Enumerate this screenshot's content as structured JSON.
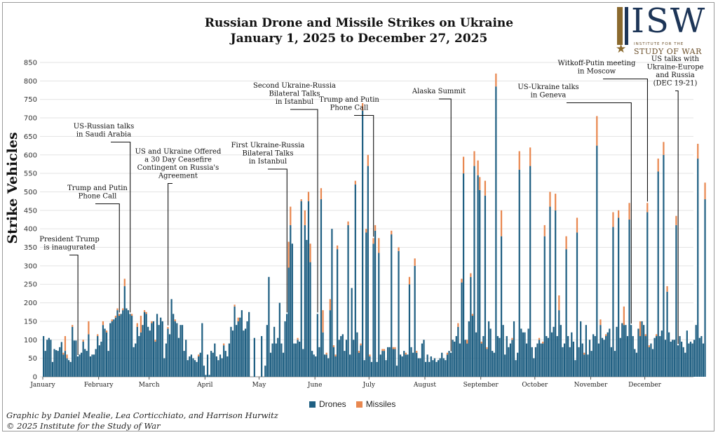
{
  "header": {
    "title_line1": "Russian Drone and Missile Strikes on Ukraine",
    "title_line2": "January 1, 2025 to December 27, 2025"
  },
  "logo": {
    "letters": "ISW",
    "institute_line": "INSTITUTE FOR THE",
    "study_line": "STUDY OF WAR",
    "colors": {
      "navy": "#1d3557",
      "gold": "#8b6a2e"
    }
  },
  "legend": {
    "drones_label": "Drones",
    "missiles_label": "Missiles"
  },
  "credit": {
    "line1": "Graphic by Daniel Mealie, Lea Corticchiato, and Harrison Hurwitz",
    "line2": "© 2025 Institute for the Study of War"
  },
  "chart_data": {
    "type": "bar",
    "stacked": true,
    "ylabel": "Strike Vehicles",
    "xlabel": "",
    "ylim": [
      0,
      850
    ],
    "yticks": [
      0,
      50,
      100,
      150,
      200,
      250,
      300,
      350,
      400,
      450,
      500,
      550,
      600,
      650,
      700,
      750,
      800,
      850
    ],
    "grid": true,
    "legend_position": "bottom-center",
    "x_start": "2025-01-01",
    "x_end": "2025-12-27",
    "month_ticks": [
      {
        "label": "January",
        "date": "2025-01-01"
      },
      {
        "label": "February",
        "date": "2025-02-01"
      },
      {
        "label": "March",
        "date": "2025-03-01"
      },
      {
        "label": "April",
        "date": "2025-04-01"
      },
      {
        "label": "May",
        "date": "2025-05-01"
      },
      {
        "label": "June",
        "date": "2025-06-01"
      },
      {
        "label": "July",
        "date": "2025-07-01"
      },
      {
        "label": "August",
        "date": "2025-08-01"
      },
      {
        "label": "September",
        "date": "2025-09-01"
      },
      {
        "label": "October",
        "date": "2025-10-01"
      },
      {
        "label": "November",
        "date": "2025-11-01"
      },
      {
        "label": "December",
        "date": "2025-12-01"
      }
    ],
    "colors": {
      "Drones": "#1f5f82",
      "Missiles": "#e8874f"
    },
    "series": [
      {
        "name": "Drones",
        "values": [
          110,
          70,
          100,
          105,
          100,
          40,
          75,
          72,
          70,
          80,
          94,
          60,
          70,
          50,
          45,
          40,
          135,
          98,
          98,
          55,
          60,
          65,
          95,
          75,
          70,
          115,
          55,
          60,
          60,
          75,
          110,
          85,
          95,
          140,
          130,
          120,
          70,
          145,
          150,
          155,
          160,
          180,
          165,
          170,
          180,
          245,
          185,
          180,
          170,
          165,
          80,
          90,
          135,
          110,
          120,
          140,
          175,
          170,
          135,
          125,
          145,
          150,
          95,
          170,
          140,
          160,
          150,
          50,
          90,
          130,
          115,
          210,
          170,
          150,
          145,
          105,
          140,
          140,
          70,
          100,
          45,
          55,
          60,
          50,
          45,
          40,
          55,
          65,
          145,
          30,
          5,
          60,
          5,
          70,
          65,
          90,
          55,
          45,
          60,
          50,
          85,
          70,
          55,
          90,
          135,
          125,
          190,
          140,
          150,
          160,
          180,
          125,
          130,
          150,
          175,
          0,
          0,
          105,
          0,
          0,
          0,
          110,
          0,
          30,
          140,
          270,
          65,
          90,
          135,
          90,
          105,
          200,
          90,
          65,
          150,
          170,
          295,
          410,
          360,
          90,
          90,
          100,
          95,
          475,
          75,
          410,
          370,
          475,
          310,
          70,
          60,
          55,
          170,
          80,
          480,
          120,
          60,
          60,
          50,
          180,
          400,
          80,
          55,
          345,
          100,
          110,
          115,
          70,
          100,
          410,
          60,
          240,
          100,
          520,
          120,
          65,
          85,
          720,
          45,
          390,
          570,
          55,
          40,
          360,
          395,
          40,
          335,
          60,
          70,
          70,
          45,
          80,
          80,
          385,
          75,
          75,
          30,
          340,
          60,
          55,
          70,
          60,
          60,
          250,
          80,
          65,
          300,
          65,
          50,
          50,
          90,
          100,
          40,
          60,
          40,
          55,
          45,
          50,
          40,
          45,
          50,
          65,
          50,
          45,
          60,
          70,
          65,
          100,
          95,
          110,
          135,
          90,
          255,
          550,
          100,
          90,
          150,
          270,
          165,
          570,
          120,
          545,
          505,
          90,
          110,
          490,
          75,
          150,
          130,
          70,
          65,
          785,
          110,
          105,
          380,
          140,
          60,
          110,
          80,
          90,
          100,
          150,
          45,
          65,
          560,
          130,
          120,
          120,
          90,
          130,
          570,
          80,
          50,
          80,
          90,
          100,
          90,
          90,
          380,
          110,
          105,
          460,
          120,
          135,
          450,
          110,
          180,
          140,
          80,
          90,
          345,
          110,
          80,
          120,
          95,
          45,
          390,
          80,
          150,
          90,
          60,
          140,
          60,
          100,
          70,
          115,
          110,
          625,
          90,
          140,
          105,
          100,
          110,
          120,
          130,
          80,
          405,
          70,
          135,
          430,
          105,
          145,
          140,
          140,
          110,
          425,
          140,
          110,
          75,
          65,
          130,
          110,
          150,
          140,
          110,
          445,
          80,
          90,
          75,
          105,
          110,
          555,
          110,
          125,
          600,
          100,
          230,
          120,
          95,
          100,
          100,
          410,
          85,
          110,
          95,
          80,
          65,
          125,
          90,
          95,
          90,
          100,
          140,
          590,
          105,
          110,
          90,
          480
        ]
      },
      {
        "name": "Missiles",
        "values": [
          0,
          0,
          0,
          0,
          0,
          0,
          0,
          0,
          0,
          0,
          0,
          5,
          40,
          10,
          0,
          0,
          5,
          0,
          0,
          0,
          0,
          0,
          5,
          0,
          0,
          35,
          0,
          0,
          0,
          0,
          5,
          0,
          0,
          10,
          0,
          5,
          0,
          0,
          5,
          0,
          5,
          5,
          5,
          0,
          5,
          20,
          0,
          0,
          0,
          5,
          0,
          0,
          10,
          0,
          45,
          0,
          5,
          5,
          0,
          0,
          5,
          0,
          5,
          0,
          0,
          0,
          0,
          0,
          0,
          5,
          0,
          0,
          0,
          5,
          0,
          0,
          0,
          0,
          0,
          0,
          0,
          0,
          0,
          0,
          0,
          0,
          5,
          0,
          0,
          0,
          0,
          0,
          0,
          0,
          0,
          0,
          0,
          0,
          0,
          0,
          5,
          0,
          0,
          0,
          0,
          0,
          5,
          0,
          10,
          0,
          0,
          0,
          0,
          0,
          0,
          0,
          0,
          0,
          0,
          0,
          0,
          0,
          0,
          0,
          0,
          0,
          0,
          0,
          0,
          0,
          0,
          0,
          0,
          0,
          0,
          0,
          70,
          50,
          0,
          0,
          0,
          5,
          0,
          5,
          0,
          40,
          0,
          25,
          50,
          0,
          0,
          0,
          0,
          0,
          30,
          60,
          0,
          5,
          0,
          30,
          0,
          5,
          5,
          10,
          0,
          0,
          0,
          0,
          0,
          10,
          0,
          0,
          0,
          10,
          0,
          5,
          5,
          20,
          0,
          10,
          30,
          5,
          0,
          15,
          15,
          0,
          40,
          0,
          5,
          5,
          0,
          0,
          0,
          10,
          5,
          5,
          0,
          10,
          0,
          0,
          0,
          5,
          0,
          20,
          0,
          0,
          20,
          5,
          0,
          0,
          0,
          0,
          0,
          0,
          0,
          0,
          0,
          0,
          0,
          0,
          0,
          0,
          0,
          0,
          5,
          0,
          0,
          0,
          0,
          0,
          10,
          0,
          10,
          45,
          0,
          10,
          0,
          10,
          5,
          40,
          0,
          40,
          35,
          5,
          0,
          40,
          5,
          0,
          0,
          0,
          0,
          35,
          0,
          0,
          70,
          0,
          0,
          0,
          0,
          0,
          5,
          0,
          0,
          0,
          50,
          0,
          0,
          0,
          0,
          0,
          50,
          0,
          0,
          0,
          0,
          5,
          0,
          5,
          30,
          0,
          0,
          40,
          0,
          0,
          45,
          0,
          40,
          0,
          0,
          0,
          35,
          0,
          0,
          0,
          0,
          0,
          40,
          0,
          0,
          0,
          5,
          0,
          0,
          0,
          0,
          0,
          0,
          80,
          0,
          15,
          0,
          0,
          5,
          0,
          0,
          0,
          40,
          0,
          0,
          20,
          0,
          0,
          50,
          0,
          0,
          45,
          0,
          0,
          0,
          0,
          0,
          40,
          0,
          0,
          5,
          25,
          5,
          0,
          0,
          0,
          5,
          35,
          0,
          0,
          35,
          0,
          15,
          0,
          0,
          0,
          0,
          25,
          0,
          0,
          0,
          0,
          0,
          0,
          0,
          0,
          0,
          0,
          0,
          40,
          0,
          0,
          0,
          45
        ]
      }
    ],
    "annotations": [
      {
        "label": "President Trump\nis inaugurated",
        "date": "2025-01-20"
      },
      {
        "label": "Trump and Putin\nPhone Call",
        "date": "2025-02-12"
      },
      {
        "label": "US-Russian talks\nin Saudi Arabia",
        "date": "2025-02-18"
      },
      {
        "label": "US and Ukraine Offered\na 30 Day Ceasefire\nContingent on Russia's\nAgreement",
        "date": "2025-03-11"
      },
      {
        "label": "First Ukraine-Russia\nBilateral Talks\nin Istanbul",
        "date": "2025-05-16"
      },
      {
        "label": "Second Ukraine-Russia\nBilateral Talks\nin Istanbul",
        "date": "2025-06-02"
      },
      {
        "label": "Trump and Putin\nPhone Call",
        "date": "2025-07-03"
      },
      {
        "label": "Alaska Summit",
        "date": "2025-08-15"
      },
      {
        "label": "US-Ukraine talks\nin Geneva",
        "date": "2025-11-23"
      },
      {
        "label": "Witkoff-Putin meeting\nin Moscow",
        "date": "2025-12-02"
      },
      {
        "label": "US talks with\nUkraine-Europe\nand Russia\n(DEC 19-21)",
        "date": "2025-12-19"
      }
    ]
  }
}
